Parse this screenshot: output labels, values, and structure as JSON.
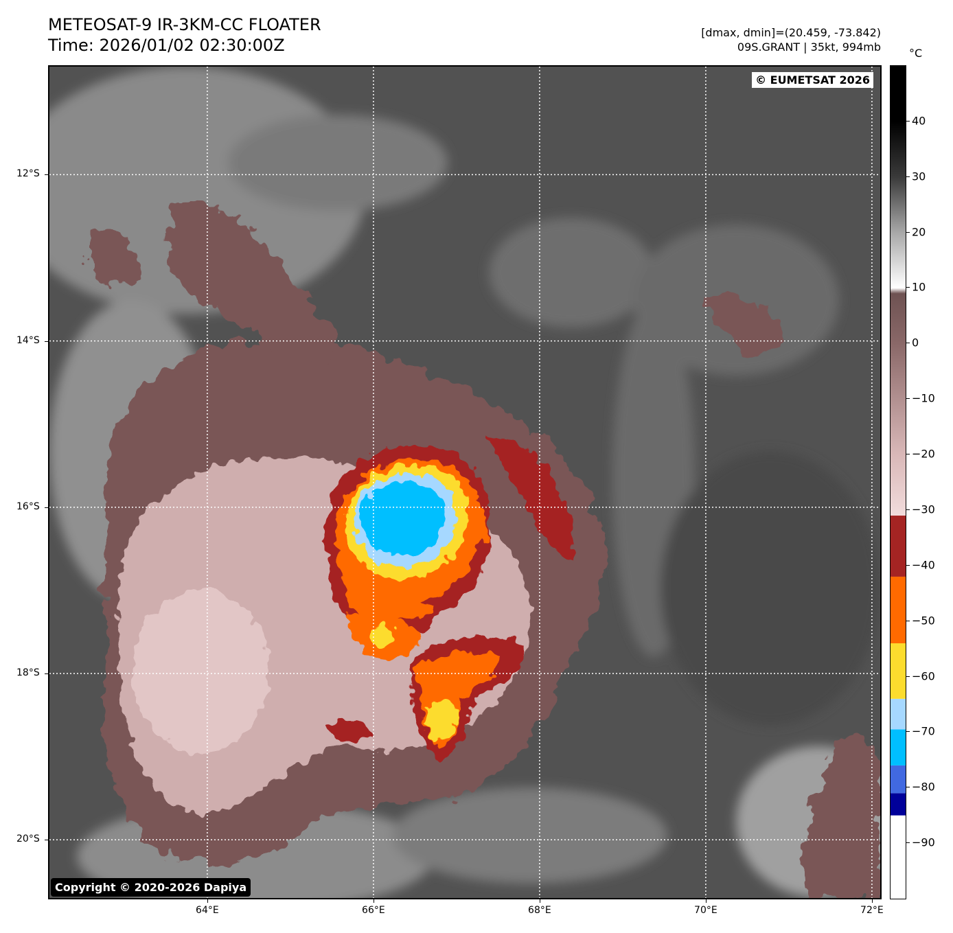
{
  "title": {
    "line1": "METEOSAT-9 IR-3KM-CC FLOATER",
    "line2": "Time: 2026/01/02 02:30:00Z"
  },
  "info": {
    "line1": "[dmax, dmin]=(20.459, -73.842)",
    "line2": "09S.GRANT | 35kt, 994mb"
  },
  "map": {
    "lon_range": [
      62.1,
      72.1
    ],
    "lat_range": [
      -20.7,
      -10.7
    ],
    "lat_labels": [
      "12°S",
      "14°S",
      "16°S",
      "18°S",
      "20°S"
    ],
    "lon_labels": [
      "64°E",
      "66°E",
      "68°E",
      "70°E",
      "72°E"
    ],
    "lat_values": [
      -12,
      -14,
      -16,
      -18,
      -20
    ],
    "lon_values": [
      64,
      66,
      68,
      70,
      72
    ],
    "storm_center": {
      "lon": 66.3,
      "lat": -15.9
    }
  },
  "stamps": {
    "top_right": "© EUMETSAT 2026",
    "bottom_left": "Copyright © 2020-2026 Dapiya"
  },
  "colorbar": {
    "unit": "°C",
    "range": [
      -100,
      50
    ],
    "tick_labels": [
      "40",
      "30",
      "20",
      "10",
      "0",
      "−10",
      "−20",
      "−30",
      "−40",
      "−50",
      "−60",
      "−70",
      "−80",
      "−90"
    ],
    "tick_values": [
      40,
      30,
      20,
      10,
      0,
      -10,
      -20,
      -30,
      -40,
      -50,
      -60,
      -70,
      -80,
      -90
    ],
    "segments": [
      {
        "from": -100,
        "to": -85,
        "color": "#ffffff"
      },
      {
        "from": -85,
        "to": -81,
        "color": "#000099"
      },
      {
        "from": -81,
        "to": -76,
        "color": "#4169e1"
      },
      {
        "from": -76,
        "to": -69.5,
        "color": "#00bfff"
      },
      {
        "from": -69.5,
        "to": -64,
        "color": "#a6d8ff"
      },
      {
        "from": -64,
        "to": -54,
        "color": "#fcdc2e"
      },
      {
        "from": -54,
        "to": -42,
        "color": "#ff6a00"
      },
      {
        "from": -42,
        "to": -31,
        "color": "#a52423"
      }
    ],
    "gradient_stops": [
      {
        "v": -31,
        "color": "#f2dcdc"
      },
      {
        "v": -20,
        "color": "#d9b8b8"
      },
      {
        "v": 0,
        "color": "#8a6868"
      },
      {
        "v": 9,
        "color": "#6e5252"
      },
      {
        "v": 10,
        "color": "#ffffff"
      },
      {
        "v": 20,
        "color": "#a8a8a8"
      },
      {
        "v": 30,
        "color": "#3a3a3a"
      },
      {
        "v": 40,
        "color": "#000000"
      },
      {
        "v": 50,
        "color": "#000000"
      }
    ]
  }
}
